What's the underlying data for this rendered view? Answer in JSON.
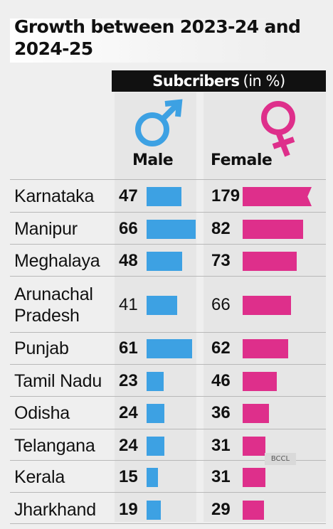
{
  "header": {
    "title": "Growth between 2023-24 and 2024-25",
    "subtitle_bold": "Subcribers",
    "subtitle_unit": "(in %)"
  },
  "columns": {
    "male_label": "Male",
    "female_label": "Female",
    "male_icon": "male-symbol-icon",
    "female_icon": "female-symbol-icon"
  },
  "colors": {
    "male": "#3da1e3",
    "female": "#de2f8b",
    "banner": "#111111"
  },
  "credit": "BCCL",
  "chart_data": {
    "type": "bar",
    "title": "Growth between 2023-24 and 2024-25",
    "ylabel": "Subcribers (in %)",
    "categories": [
      "Karnataka",
      "Manipur",
      "Meghalaya",
      "Arunachal Pradesh",
      "Punjab",
      "Tamil Nadu",
      "Odisha",
      "Telangana",
      "Kerala",
      "Jharkhand"
    ],
    "series": [
      {
        "name": "Male",
        "values": [
          47,
          66,
          48,
          41,
          61,
          23,
          24,
          24,
          15,
          19
        ]
      },
      {
        "name": "Female",
        "values": [
          179,
          82,
          73,
          66,
          62,
          46,
          36,
          31,
          31,
          29
        ]
      }
    ],
    "truncated": [
      "Karnataka/Female"
    ]
  },
  "rows": [
    {
      "state": "Karnataka",
      "male": "47",
      "female": "179"
    },
    {
      "state": "Manipur",
      "male": "66",
      "female": "82"
    },
    {
      "state": "Meghalaya",
      "male": "48",
      "female": "73"
    },
    {
      "state": "Arunachal Pradesh",
      "male": "41",
      "female": "66"
    },
    {
      "state": "Punjab",
      "male": "61",
      "female": "62"
    },
    {
      "state": "Tamil Nadu",
      "male": "23",
      "female": "46"
    },
    {
      "state": "Odisha",
      "male": "24",
      "female": "36"
    },
    {
      "state": "Telangana",
      "male": "24",
      "female": "31"
    },
    {
      "state": "Kerala",
      "male": "15",
      "female": "31"
    },
    {
      "state": "Jharkhand",
      "male": "19",
      "female": "29"
    }
  ]
}
